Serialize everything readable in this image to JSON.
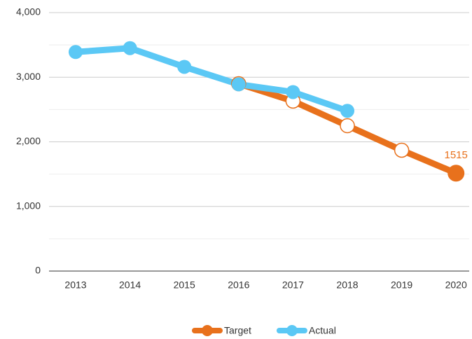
{
  "chart_data": {
    "type": "line",
    "categories": [
      "2013",
      "2014",
      "2015",
      "2016",
      "2017",
      "2018",
      "2019",
      "2020"
    ],
    "series": [
      {
        "name": "Target",
        "color": "#e8711c",
        "values": [
          null,
          null,
          null,
          2900,
          2630,
          2250,
          1870,
          1515
        ],
        "value_labels": [
          null,
          null,
          null,
          null,
          null,
          null,
          null,
          "1515"
        ],
        "hollow_markers": true,
        "highlight_last": true
      },
      {
        "name": "Actual",
        "color": "#5bc8f5",
        "values": [
          3390,
          3450,
          3160,
          2890,
          2770,
          2480,
          null,
          null
        ],
        "hollow_markers": false,
        "highlight_last": false
      }
    ],
    "ylim": [
      0,
      4000
    ],
    "yticks": [
      0,
      {
        "value": 1000,
        "label": "1,000"
      },
      {
        "value": 2000,
        "label": "2,000"
      },
      {
        "value": 3000,
        "label": "3,000"
      },
      {
        "value": 4000,
        "label": "4,000"
      }
    ],
    "minor_yticks": [
      500,
      1500,
      2500,
      3500
    ],
    "grid": true,
    "legend": "bottom"
  }
}
